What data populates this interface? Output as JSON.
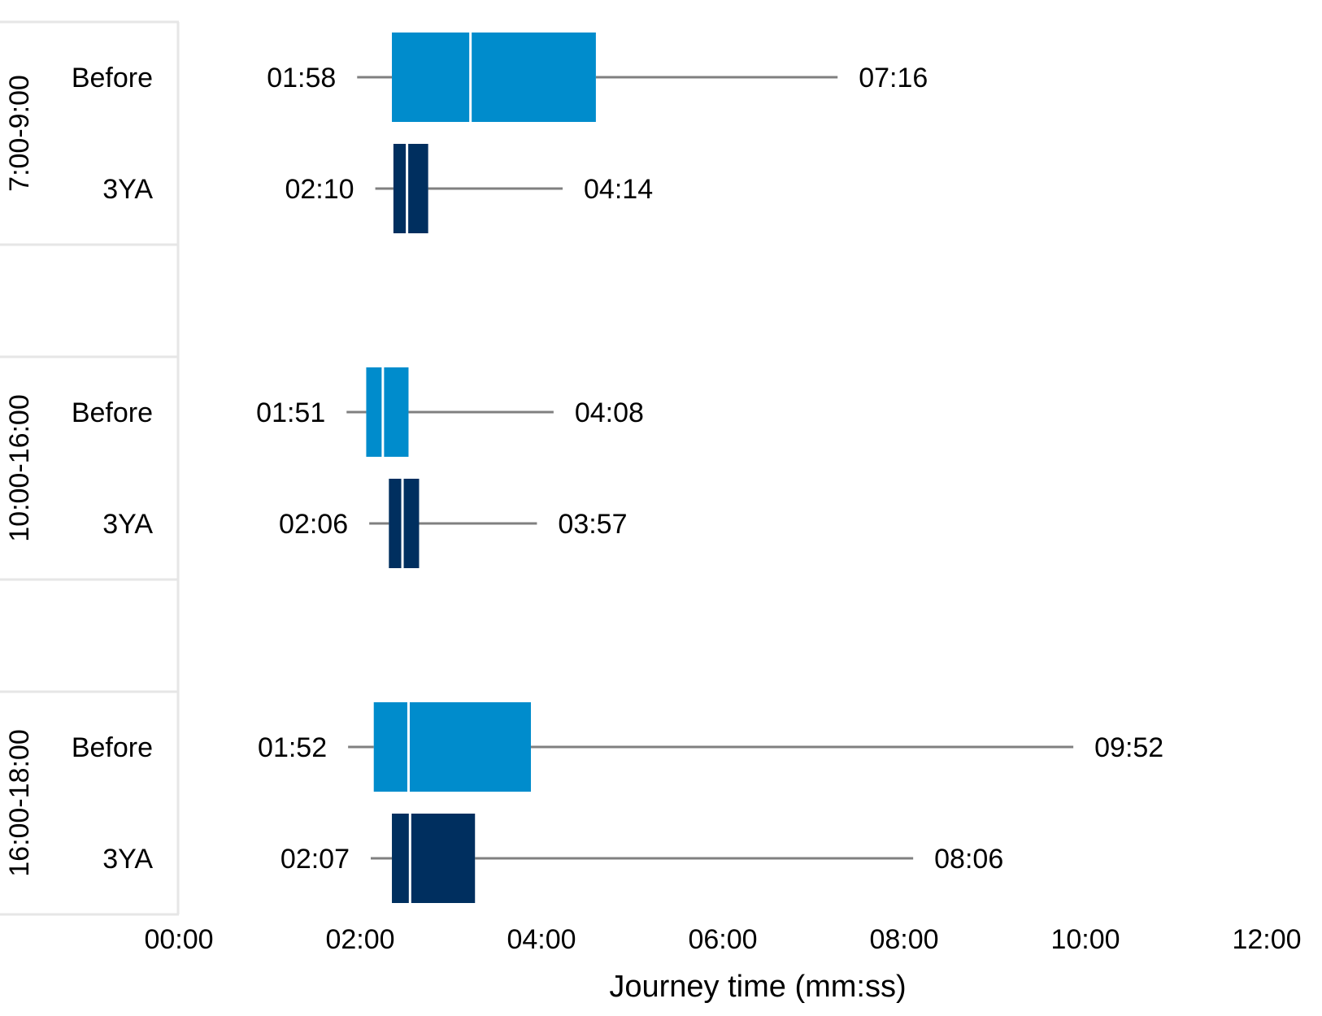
{
  "chart_data": {
    "type": "boxplot",
    "title": "",
    "xlabel": "Journey time (mm:ss)",
    "ylabel": "",
    "xlim": [
      "00:00",
      "12:00"
    ],
    "x_ticks": [
      "00:00",
      "02:00",
      "04:00",
      "06:00",
      "08:00",
      "10:00",
      "12:00"
    ],
    "grid": false,
    "legend": "none",
    "colors": {
      "Before": "#008ccc",
      "3YA": "#002f5f",
      "whisker": "#808080",
      "divider": "#e6e6e6"
    },
    "groups": [
      {
        "label": "7:00-9:00",
        "rows": [
          {
            "label": "Before",
            "min": "01:58",
            "q1": "02:21",
            "median": "03:13",
            "q3": "04:36",
            "max": "07:16"
          },
          {
            "label": "3YA",
            "min": "02:10",
            "q1": "02:22",
            "median": "02:31",
            "q3": "02:45",
            "max": "04:14"
          }
        ]
      },
      {
        "label": "10:00-16:00",
        "rows": [
          {
            "label": "Before",
            "min": "01:51",
            "q1": "02:04",
            "median": "02:15",
            "q3": "02:32",
            "max": "04:08"
          },
          {
            "label": "3YA",
            "min": "02:06",
            "q1": "02:19",
            "median": "02:28",
            "q3": "02:39",
            "max": "03:57"
          }
        ]
      },
      {
        "label": "16:00-18:00",
        "rows": [
          {
            "label": "Before",
            "min": "01:52",
            "q1": "02:09",
            "median": "02:32",
            "q3": "03:53",
            "max": "09:52"
          },
          {
            "label": "3YA",
            "min": "02:07",
            "q1": "02:21",
            "median": "02:33",
            "q3": "03:16",
            "max": "08:06"
          }
        ]
      }
    ]
  }
}
